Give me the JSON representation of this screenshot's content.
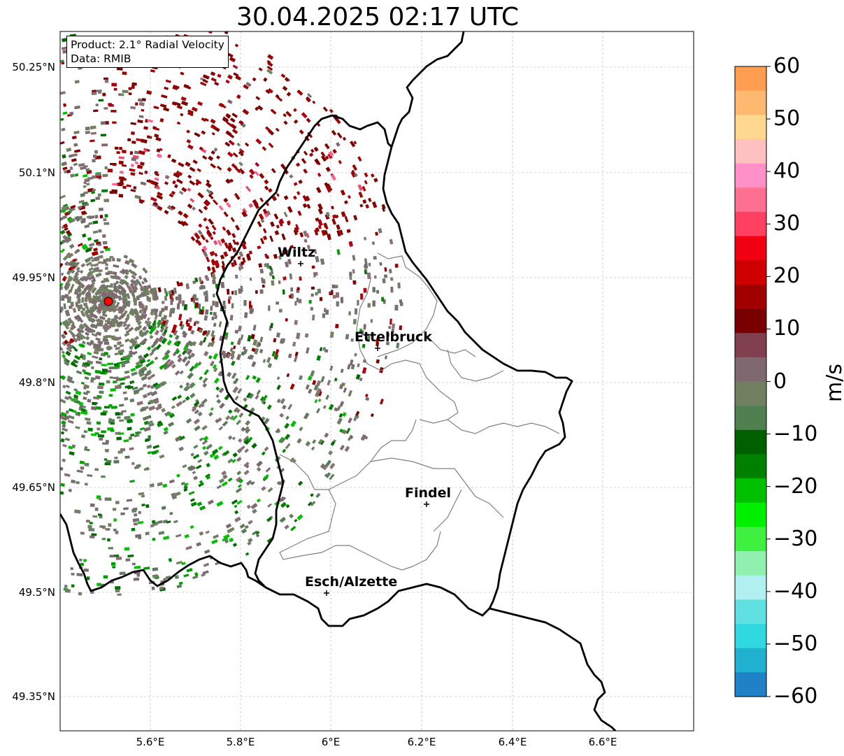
{
  "title": "30.04.2025 02:17 UTC",
  "info": {
    "product": "Product: 2.1° Radial Velocity",
    "source": "Data: RMIB"
  },
  "axes": {
    "lat_ticks": [
      "50.25°N",
      "50.1°N",
      "49.95°N",
      "49.8°N",
      "49.65°N",
      "49.5°N",
      "49.35°N"
    ],
    "lon_ticks": [
      "5.6°E",
      "5.8°E",
      "6°E",
      "6.2°E",
      "6.4°E",
      "6.6°E"
    ],
    "grid": true
  },
  "colorbar": {
    "label": "m/s",
    "ticks": [
      "60",
      "50",
      "40",
      "30",
      "20",
      "10",
      "0",
      "−10",
      "−20",
      "−30",
      "−40",
      "−50",
      "−60"
    ],
    "min": -60,
    "max": 60,
    "colors_top_to_bottom": [
      "#ff9e50",
      "#ffb870",
      "#ffd890",
      "#ffc0c0",
      "#ff90c8",
      "#ff7090",
      "#ff4060",
      "#f00010",
      "#d00000",
      "#a00000",
      "#780000",
      "#804050",
      "#806870",
      "#708060",
      "#508050",
      "#006000",
      "#008000",
      "#00c000",
      "#00f000",
      "#40f040",
      "#90f0b0",
      "#b0f0f0",
      "#60e0e0",
      "#30d8e0",
      "#20b0d0",
      "#2080c8"
    ]
  },
  "cities": [
    {
      "name": "Wiltz"
    },
    {
      "name": "Ettelbruck"
    },
    {
      "name": "Findel"
    },
    {
      "name": "Esch/Alzette"
    }
  ],
  "radar_site_color": "#ff0000"
}
